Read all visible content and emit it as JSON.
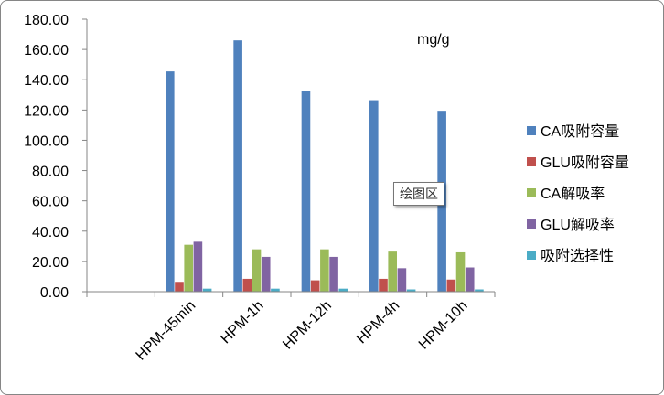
{
  "chart_data": {
    "type": "bar",
    "categories": [
      "",
      "HPM-45min",
      "HPM-1h",
      "HPM-12h",
      "HPM-4h",
      "HPM-10h"
    ],
    "series": [
      {
        "name": "CA吸附容量",
        "color": "#4F81BD",
        "values": [
          null,
          145.5,
          166.0,
          132.5,
          126.5,
          119.5
        ]
      },
      {
        "name": "GLU吸附容量",
        "color": "#C0504D",
        "values": [
          null,
          6.5,
          8.5,
          7.5,
          8.5,
          8.0
        ]
      },
      {
        "name": "CA解吸率",
        "color": "#9BBB59",
        "values": [
          null,
          31.0,
          28.0,
          28.0,
          26.5,
          26.0
        ]
      },
      {
        "name": "GLU解吸率",
        "color": "#8064A2",
        "values": [
          null,
          33.0,
          23.0,
          23.0,
          15.5,
          16.0
        ]
      },
      {
        "name": "吸附选择性",
        "color": "#4BACC6",
        "values": [
          null,
          2.0,
          2.0,
          2.0,
          1.5,
          1.5
        ]
      }
    ],
    "yticks": [
      "0.00",
      "20.00",
      "40.00",
      "60.00",
      "80.00",
      "100.00",
      "120.00",
      "140.00",
      "160.00",
      "180.00"
    ],
    "ylim": [
      0,
      180
    ],
    "unit_annotation": "mg/g",
    "legend_position": "right",
    "grid": false
  },
  "tooltip_text": "绘图区"
}
